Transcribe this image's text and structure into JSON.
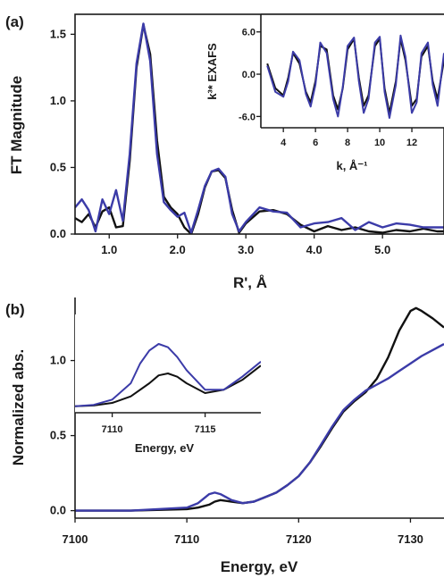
{
  "chart_data": [
    {
      "panel_label": "(a)",
      "type": "line",
      "xlabel": "R', Å",
      "ylabel": "FT Magnitude",
      "xlim": [
        0.5,
        5.9
      ],
      "ylim": [
        0,
        1.65
      ],
      "xticks": [
        1.0,
        2.0,
        3.0,
        4.0,
        5.0
      ],
      "xtick_labels": [
        "1.0",
        "2.0",
        "3.0",
        "4.0",
        "5.0"
      ],
      "yticks": [
        0,
        0.5,
        1.0,
        1.5
      ],
      "ytick_labels": [
        "0.0",
        "0.5",
        "1.0",
        "1.5"
      ],
      "series": [
        {
          "color": "#111111",
          "x": [
            0.5,
            0.6,
            0.7,
            0.8,
            0.9,
            1.0,
            1.1,
            1.2,
            1.3,
            1.4,
            1.5,
            1.6,
            1.7,
            1.8,
            1.9,
            2.0,
            2.1,
            2.2,
            2.3,
            2.4,
            2.5,
            2.6,
            2.7,
            2.8,
            2.9,
            3.0,
            3.2,
            3.4,
            3.6,
            3.8,
            4.0,
            4.2,
            4.4,
            4.6,
            4.8,
            5.0,
            5.2,
            5.4,
            5.6,
            5.8,
            5.9
          ],
          "y": [
            0.12,
            0.09,
            0.15,
            0.05,
            0.17,
            0.2,
            0.05,
            0.06,
            0.55,
            1.25,
            1.57,
            1.35,
            0.7,
            0.28,
            0.2,
            0.15,
            0.05,
            0.0,
            0.15,
            0.35,
            0.47,
            0.48,
            0.42,
            0.18,
            0.01,
            0.08,
            0.17,
            0.18,
            0.15,
            0.07,
            0.02,
            0.06,
            0.03,
            0.05,
            0.02,
            0.01,
            0.03,
            0.02,
            0.04,
            0.02,
            0.02
          ]
        },
        {
          "color": "#3b3ba8",
          "x": [
            0.5,
            0.6,
            0.7,
            0.8,
            0.9,
            1.0,
            1.1,
            1.2,
            1.3,
            1.4,
            1.5,
            1.6,
            1.7,
            1.8,
            1.9,
            2.0,
            2.1,
            2.2,
            2.3,
            2.4,
            2.5,
            2.6,
            2.7,
            2.8,
            2.9,
            3.0,
            3.2,
            3.4,
            3.6,
            3.8,
            4.0,
            4.2,
            4.4,
            4.6,
            4.8,
            5.0,
            5.2,
            5.4,
            5.6,
            5.8,
            5.9
          ],
          "y": [
            0.2,
            0.26,
            0.18,
            0.02,
            0.26,
            0.15,
            0.33,
            0.1,
            0.6,
            1.28,
            1.58,
            1.3,
            0.6,
            0.24,
            0.18,
            0.13,
            0.16,
            0.01,
            0.18,
            0.36,
            0.47,
            0.49,
            0.43,
            0.15,
            0.02,
            0.09,
            0.2,
            0.17,
            0.16,
            0.05,
            0.08,
            0.09,
            0.12,
            0.03,
            0.09,
            0.05,
            0.08,
            0.07,
            0.05,
            0.05,
            0.05
          ]
        }
      ]
    },
    {
      "panel_label": "(a) inset",
      "type": "line",
      "xlabel": "k, Å⁻¹",
      "ylabel": "k³* EXAFS",
      "xlim": [
        2.6,
        14.0
      ],
      "ylim": [
        -7.6,
        8.5
      ],
      "xticks": [
        4,
        6,
        8,
        10,
        12
      ],
      "xtick_labels": [
        "4",
        "6",
        "8",
        "10",
        "12"
      ],
      "yticks": [
        -6.0,
        0.0,
        6.0
      ],
      "ytick_labels": [
        "-6.0",
        "0.0",
        "6.0"
      ],
      "series": [
        {
          "color": "#111111",
          "x": [
            3.0,
            3.5,
            4.0,
            4.3,
            4.6,
            5.0,
            5.4,
            5.7,
            6.0,
            6.3,
            6.7,
            7.1,
            7.4,
            7.7,
            8.0,
            8.4,
            8.7,
            9.0,
            9.3,
            9.7,
            10.0,
            10.3,
            10.6,
            11.0,
            11.3,
            11.6,
            12.0,
            12.3,
            12.6,
            13.0,
            13.3,
            13.6,
            14.0
          ],
          "y": [
            1.5,
            -2.0,
            -3.0,
            -0.5,
            3.0,
            1.5,
            -2.5,
            -4.0,
            -1.0,
            4.0,
            3.5,
            -3.0,
            -5.0,
            -2.0,
            3.5,
            5.0,
            -0.5,
            -4.5,
            -3.0,
            4.0,
            5.0,
            -2.0,
            -5.5,
            -1.0,
            5.0,
            2.0,
            -4.5,
            -3.5,
            2.5,
            4.0,
            -1.0,
            -3.5,
            2.0
          ]
        },
        {
          "color": "#3b3ba8",
          "x": [
            3.0,
            3.5,
            4.0,
            4.3,
            4.6,
            5.0,
            5.4,
            5.7,
            6.0,
            6.3,
            6.7,
            7.1,
            7.4,
            7.7,
            8.0,
            8.4,
            8.7,
            9.0,
            9.3,
            9.7,
            10.0,
            10.3,
            10.6,
            11.0,
            11.3,
            11.6,
            12.0,
            12.3,
            12.6,
            13.0,
            13.3,
            13.6,
            14.0
          ],
          "y": [
            1.2,
            -2.5,
            -3.2,
            -1.0,
            3.2,
            2.0,
            -2.8,
            -4.6,
            -1.5,
            4.5,
            3.0,
            -3.5,
            -6.0,
            -1.8,
            4.0,
            5.2,
            -1.0,
            -5.5,
            -3.5,
            4.5,
            5.3,
            -2.5,
            -6.2,
            -1.5,
            5.5,
            2.5,
            -5.5,
            -4.0,
            3.0,
            4.5,
            -1.5,
            -4.5,
            3.0
          ]
        }
      ]
    },
    {
      "panel_label": "(b)",
      "type": "line",
      "xlabel": "Energy, eV",
      "ylabel": "Normalized abs.",
      "xlim": [
        7100,
        7133
      ],
      "ylim": [
        -0.05,
        1.42
      ],
      "xticks": [
        7100,
        7110,
        7120,
        7130
      ],
      "xtick_labels": [
        "7100",
        "7110",
        "7120",
        "7130"
      ],
      "yticks": [
        0.0,
        0.5,
        1.0
      ],
      "ytick_labels": [
        "0.0",
        "0.5",
        "1.0"
      ],
      "series": [
        {
          "color": "#111111",
          "x": [
            7100,
            7105,
            7110,
            7111,
            7112,
            7112.5,
            7113,
            7114,
            7115,
            7116,
            7117,
            7118,
            7119,
            7120,
            7121,
            7122,
            7123,
            7124,
            7125,
            7126,
            7127,
            7128,
            7129,
            7130,
            7130.5,
            7131,
            7132,
            7133
          ],
          "y": [
            0.0,
            0.0,
            0.01,
            0.02,
            0.04,
            0.06,
            0.07,
            0.06,
            0.05,
            0.06,
            0.09,
            0.12,
            0.17,
            0.23,
            0.32,
            0.43,
            0.55,
            0.66,
            0.73,
            0.79,
            0.88,
            1.02,
            1.2,
            1.33,
            1.35,
            1.33,
            1.28,
            1.22
          ]
        },
        {
          "color": "#3b3ba8",
          "x": [
            7100,
            7105,
            7110,
            7111,
            7112,
            7112.5,
            7113,
            7114,
            7115,
            7116,
            7117,
            7118,
            7119,
            7120,
            7121,
            7122,
            7123,
            7124,
            7125,
            7126,
            7127,
            7128,
            7129,
            7130,
            7131,
            7132,
            7133
          ],
          "y": [
            0.0,
            0.0,
            0.02,
            0.05,
            0.11,
            0.12,
            0.11,
            0.07,
            0.05,
            0.06,
            0.09,
            0.12,
            0.17,
            0.23,
            0.32,
            0.44,
            0.56,
            0.67,
            0.74,
            0.8,
            0.84,
            0.88,
            0.93,
            0.98,
            1.03,
            1.07,
            1.11
          ]
        }
      ]
    },
    {
      "panel_label": "(b) inset",
      "type": "line",
      "xlabel": "Energy, eV",
      "ylabel": "",
      "xlim": [
        7108,
        7118
      ],
      "ylim": [
        -0.01,
        0.14
      ],
      "xticks": [
        7110,
        7115
      ],
      "xtick_labels": [
        "7110",
        "7115"
      ],
      "series": [
        {
          "color": "#111111",
          "x": [
            7108,
            7109,
            7110,
            7111,
            7112,
            7112.5,
            7113,
            7113.5,
            7114,
            7115,
            7116,
            7117,
            7118
          ],
          "y": [
            0.0,
            0.001,
            0.005,
            0.015,
            0.035,
            0.047,
            0.05,
            0.045,
            0.035,
            0.02,
            0.025,
            0.04,
            0.062
          ]
        },
        {
          "color": "#3b3ba8",
          "x": [
            7108,
            7109,
            7110,
            7111,
            7111.5,
            7112,
            7112.5,
            7113,
            7113.5,
            7114,
            7115,
            7116,
            7117,
            7118
          ],
          "y": [
            0.0,
            0.002,
            0.01,
            0.035,
            0.065,
            0.085,
            0.095,
            0.09,
            0.075,
            0.055,
            0.025,
            0.025,
            0.045,
            0.068
          ]
        }
      ]
    }
  ]
}
